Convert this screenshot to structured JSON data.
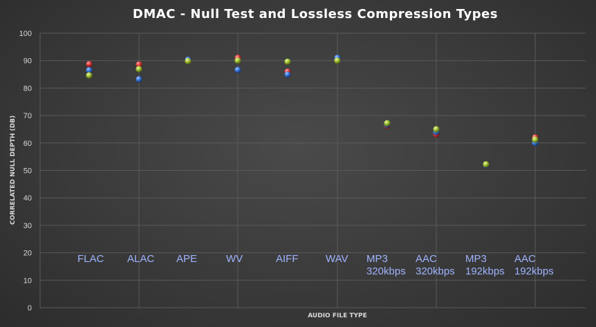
{
  "chart_data": {
    "type": "scatter",
    "title": "DMAC - Null Test and Lossless Compression Types",
    "xlabel": "AUDIO FILE TYPE",
    "ylabel": "CORRELATED NULL DEPTH (DB)",
    "ylim": [
      0,
      100
    ],
    "yticks": [
      "0",
      "10",
      "20",
      "30",
      "40",
      "50",
      "60",
      "70",
      "80",
      "90",
      "100"
    ],
    "categories": [
      [
        "FLAC"
      ],
      [
        "ALAC"
      ],
      [
        "APE"
      ],
      [
        "WV"
      ],
      [
        "AIFF"
      ],
      [
        "WAV"
      ],
      [
        "MP3",
        "320kbps"
      ],
      [
        "AAC",
        "320kbps"
      ],
      [
        "MP3",
        "192kbps"
      ],
      [
        "AAC",
        "192kbps"
      ]
    ],
    "grid": true,
    "series": [
      {
        "color": "#e04040",
        "values": [
          88.7,
          88.6,
          90.0,
          91.0,
          86.0,
          90.4,
          66.3,
          63.2,
          52.1,
          62.0
        ]
      },
      {
        "color": "#3d7be0",
        "values": [
          86.5,
          83.2,
          90.3,
          86.6,
          84.9,
          91.0,
          66.7,
          64.0,
          52.0,
          60.0
        ]
      },
      {
        "color": "#a8c83a",
        "values": [
          84.6,
          86.9,
          89.8,
          90.0,
          89.6,
          90.0,
          67.2,
          65.0,
          52.2,
          61.2
        ]
      }
    ]
  }
}
